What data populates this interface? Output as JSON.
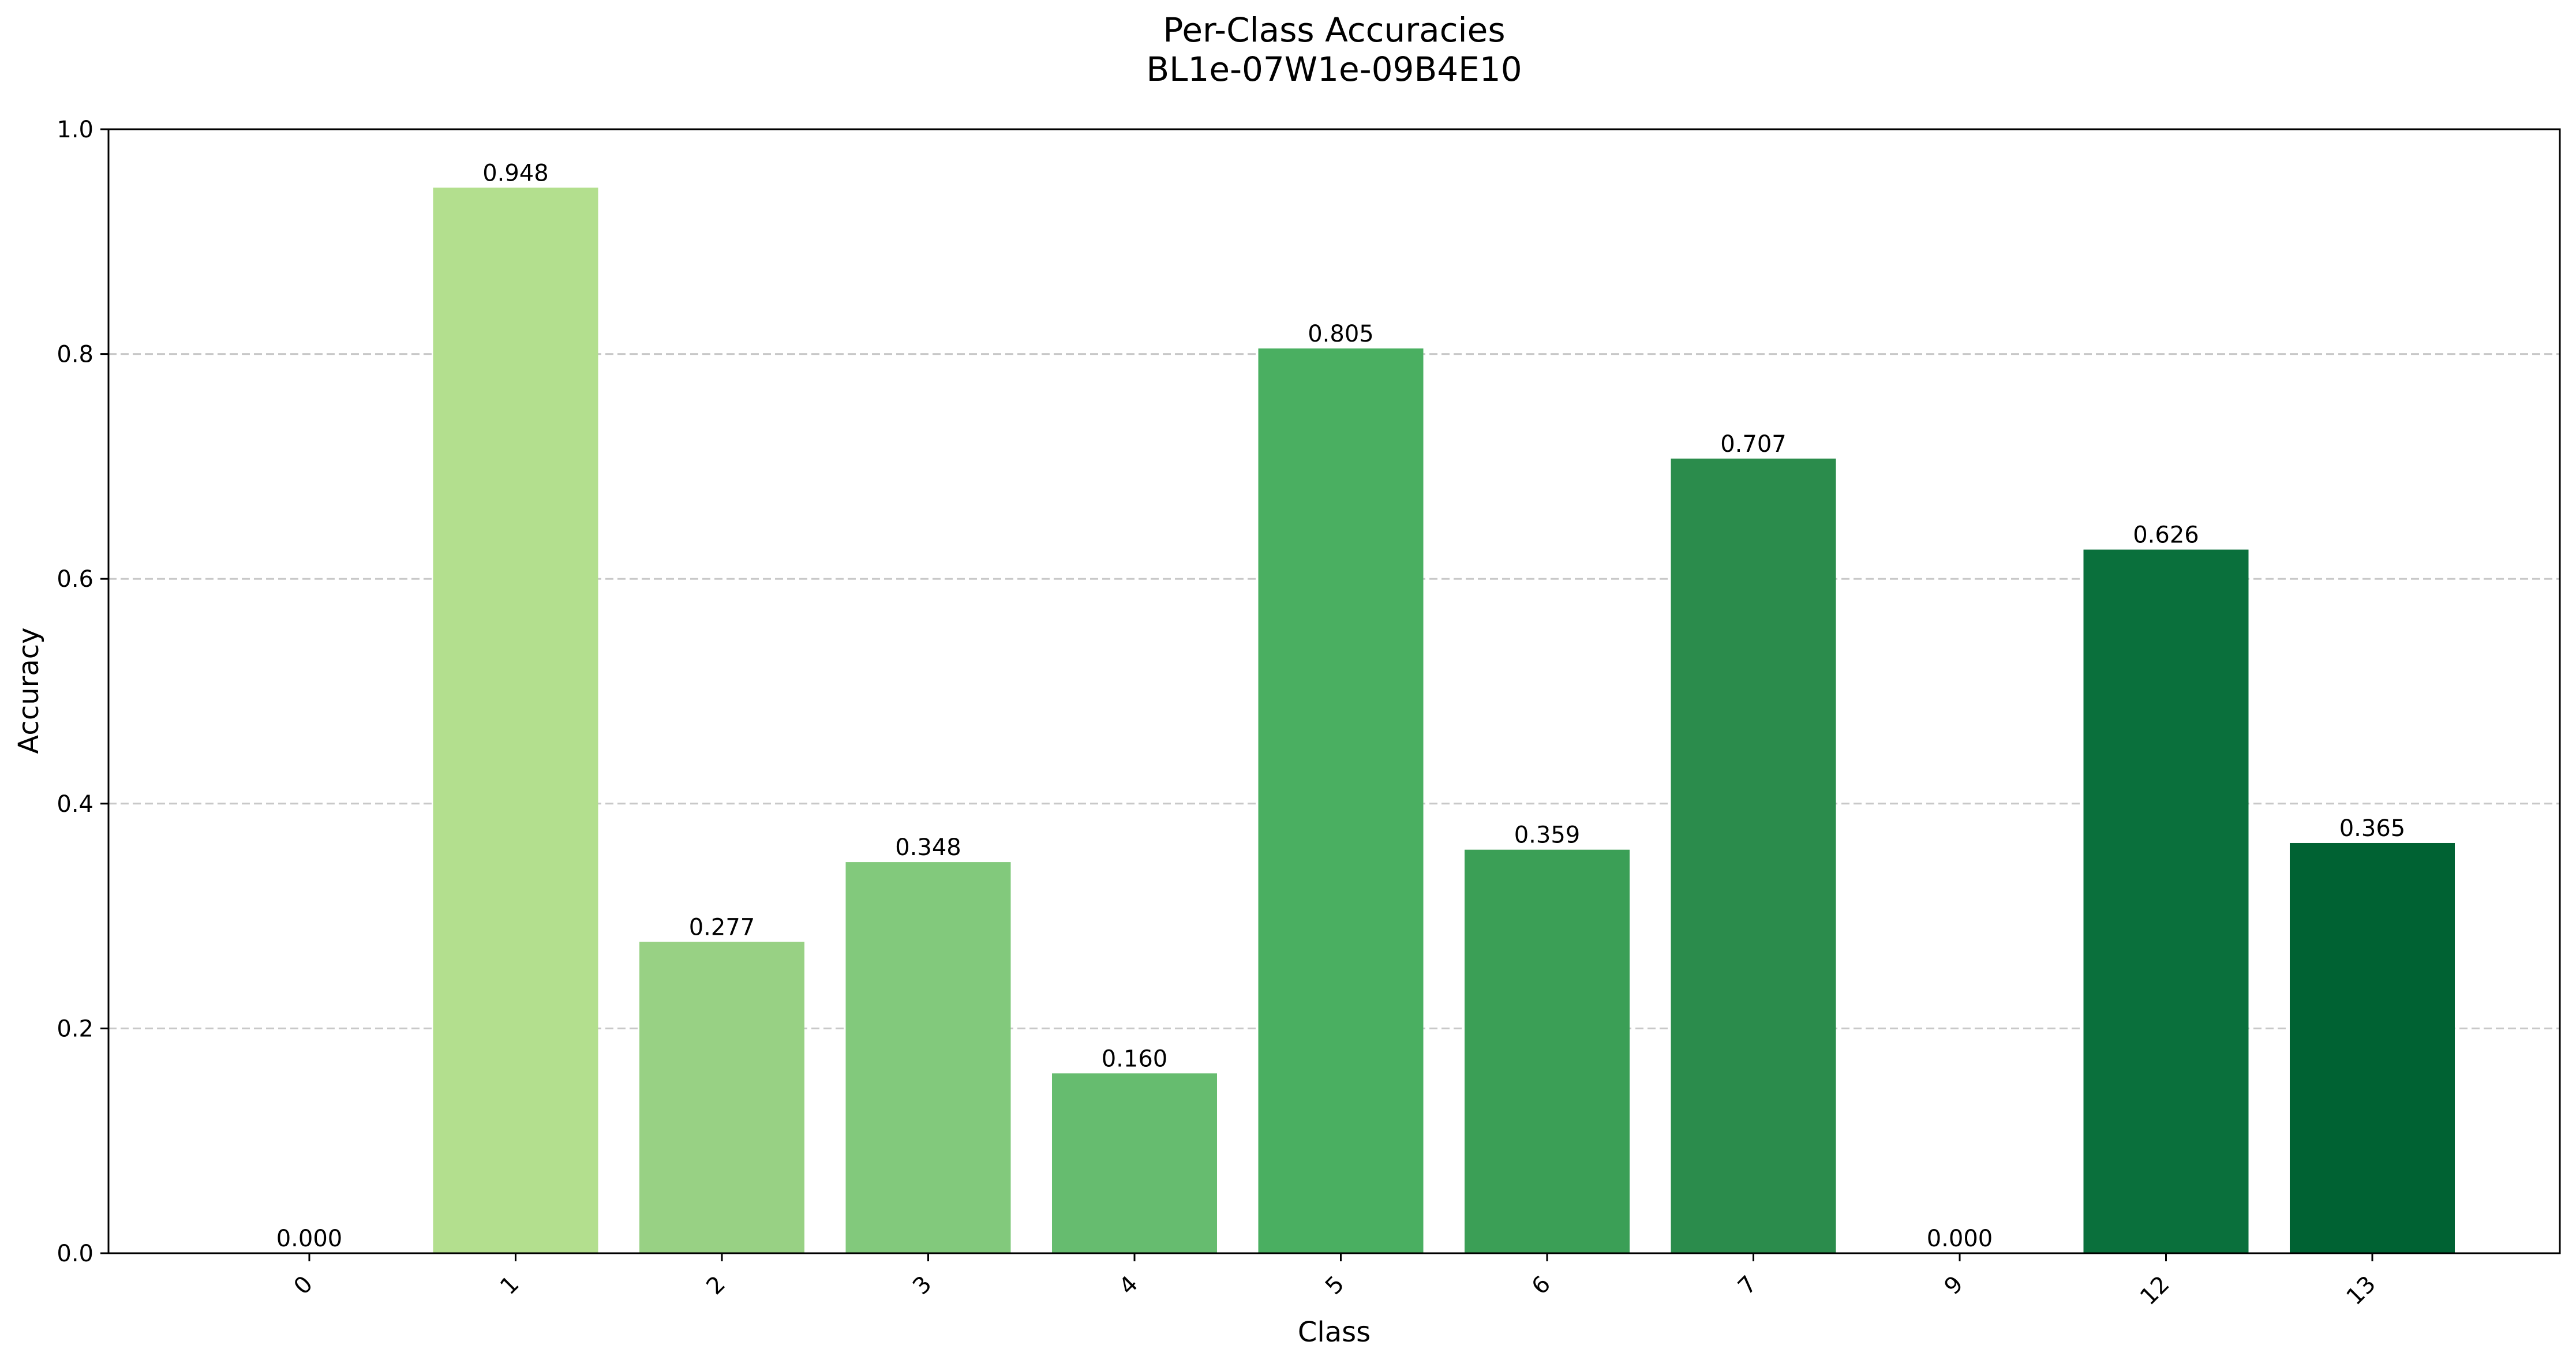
{
  "chart_data": {
    "type": "bar",
    "title": "Per-Class Accuracies",
    "subtitle": "BL1e-07W1e-09B4E10",
    "xlabel": "Class",
    "ylabel": "Accuracy",
    "categories": [
      "0",
      "1",
      "2",
      "3",
      "4",
      "5",
      "6",
      "7",
      "9",
      "12",
      "13"
    ],
    "values": [
      0.0,
      0.948,
      0.277,
      0.348,
      0.16,
      0.805,
      0.359,
      0.707,
      0.0,
      0.626,
      0.365
    ],
    "value_labels": [
      "0.000",
      "0.948",
      "0.277",
      "0.348",
      "0.160",
      "0.805",
      "0.359",
      "0.707",
      "0.000",
      "0.626",
      "0.365"
    ],
    "bar_colors": [
      "#c5e8a0",
      "#b3df8e",
      "#98d184",
      "#82c97c",
      "#66bc6f",
      "#4aaf61",
      "#3b9f56",
      "#2b8c4c",
      "#17803f",
      "#0a703c",
      "#006233"
    ],
    "ylim": [
      0,
      1.0
    ],
    "yticks": [
      0.0,
      0.2,
      0.4,
      0.6,
      0.8,
      1.0
    ],
    "ytick_labels": [
      "0.0",
      "0.2",
      "0.4",
      "0.6",
      "0.8",
      "1.0"
    ],
    "grid": "y-dashed",
    "legend": "none"
  }
}
